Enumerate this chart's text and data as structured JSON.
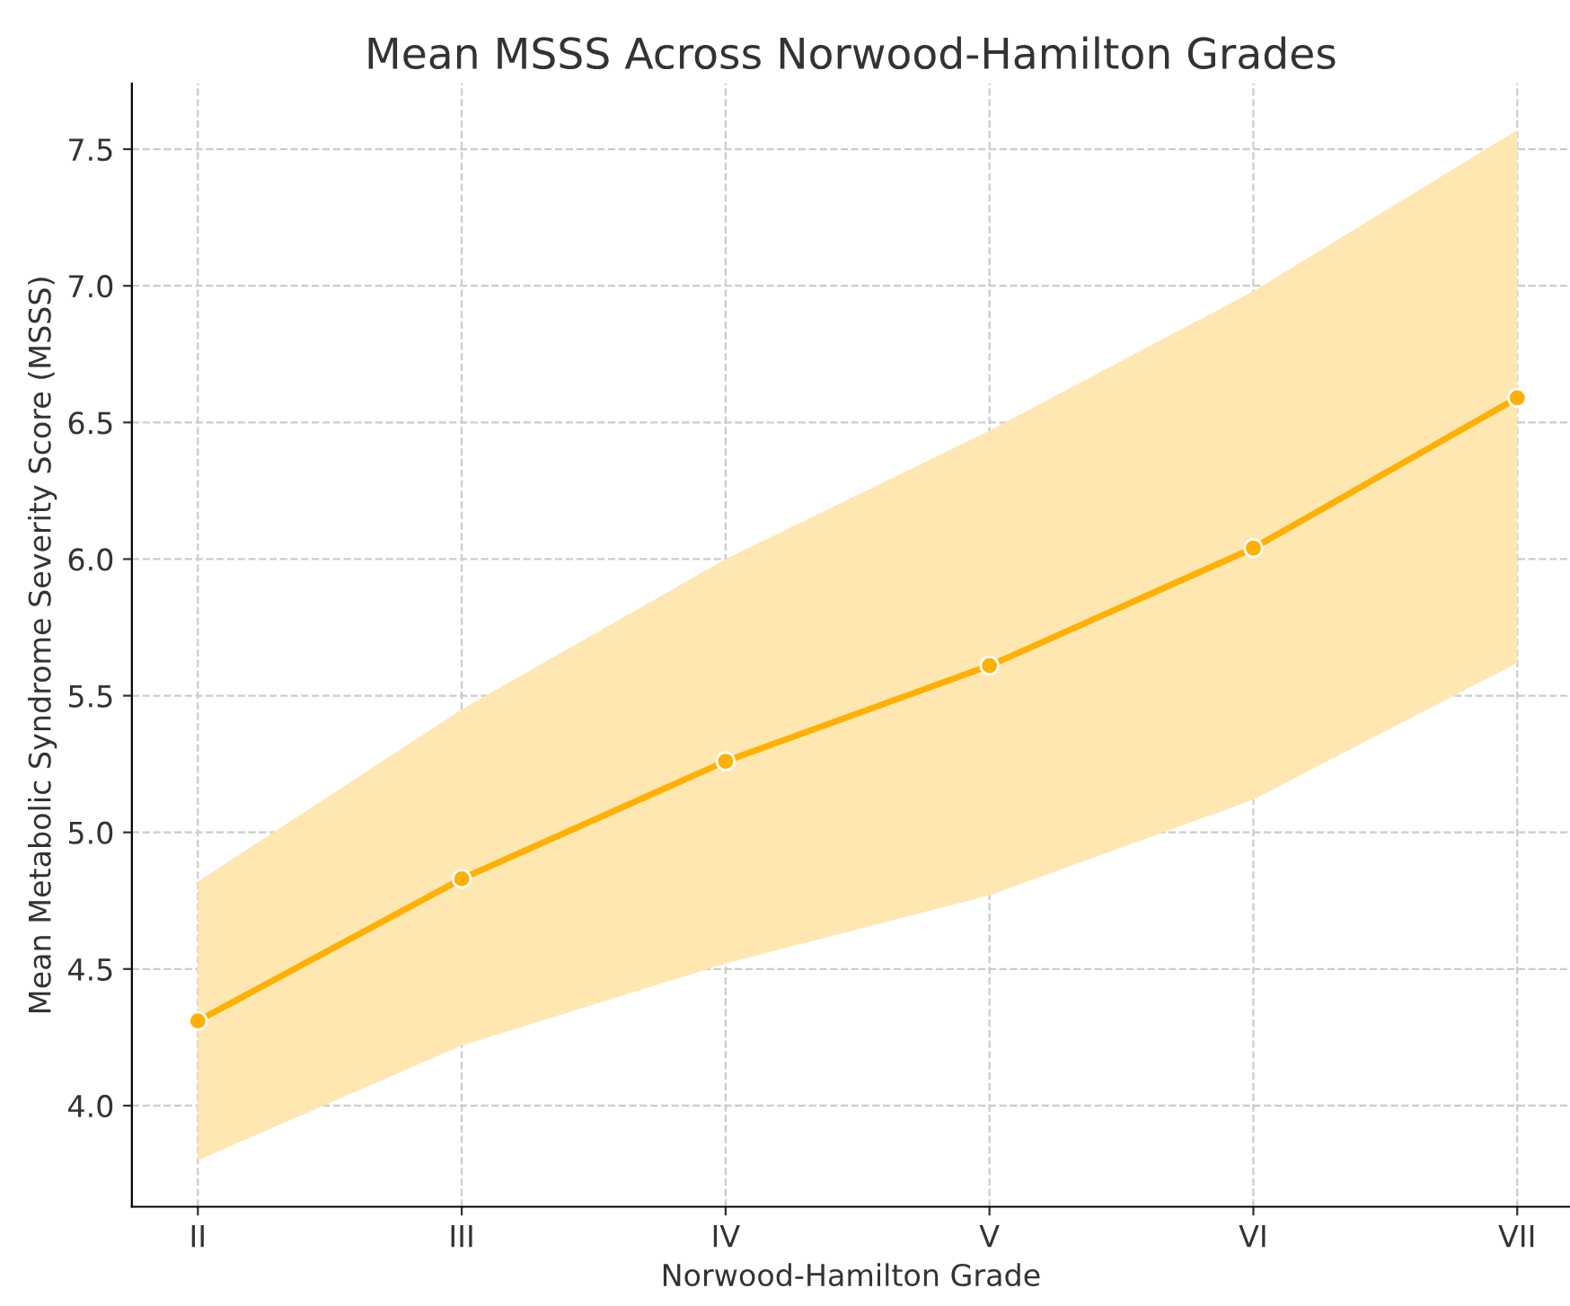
{
  "chart_data": {
    "type": "line",
    "title": "Mean MSSS Across Norwood-Hamilton Grades",
    "xlabel": "Norwood-Hamilton Grade",
    "ylabel": "Mean Metabolic Syndrome Severity Score (MSSS)",
    "categories": [
      "II",
      "III",
      "IV",
      "V",
      "VI",
      "VII"
    ],
    "series": [
      {
        "color": "#ffb000",
        "values": [
          4.31,
          4.83,
          5.26,
          5.61,
          6.04,
          6.59
        ],
        "lower": [
          3.8,
          4.22,
          4.52,
          4.77,
          5.12,
          5.62
        ],
        "upper": [
          4.82,
          5.45,
          6.0,
          6.47,
          6.98,
          7.57
        ]
      }
    ],
    "ylim": [
      3.63,
      7.74
    ],
    "yticks": [
      {
        "value": 4.0,
        "label": "4.0"
      },
      {
        "value": 4.5,
        "label": "4.5"
      },
      {
        "value": 5.0,
        "label": "5.0"
      },
      {
        "value": 5.5,
        "label": "5.5"
      },
      {
        "value": 6.0,
        "label": "6.0"
      },
      {
        "value": 6.5,
        "label": "6.5"
      },
      {
        "value": 7.0,
        "label": "7.0"
      },
      {
        "value": 7.5,
        "label": "7.5"
      }
    ],
    "grid": true,
    "marker": "circle",
    "line_style": "solid",
    "legend": false
  }
}
